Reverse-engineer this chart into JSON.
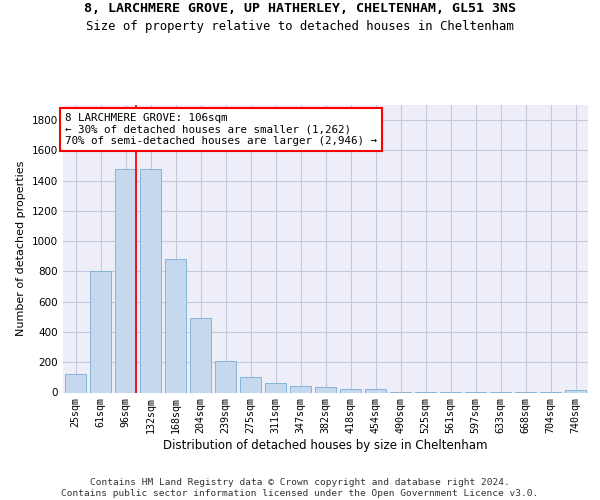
{
  "title_line1": "8, LARCHMERE GROVE, UP HATHERLEY, CHELTENHAM, GL51 3NS",
  "title_line2": "Size of property relative to detached houses in Cheltenham",
  "xlabel": "Distribution of detached houses by size in Cheltenham",
  "ylabel": "Number of detached properties",
  "bar_color": "#c5d8ed",
  "bar_edge_color": "#7aadd4",
  "categories": [
    "25sqm",
    "61sqm",
    "96sqm",
    "132sqm",
    "168sqm",
    "204sqm",
    "239sqm",
    "275sqm",
    "311sqm",
    "347sqm",
    "382sqm",
    "418sqm",
    "454sqm",
    "490sqm",
    "525sqm",
    "561sqm",
    "597sqm",
    "633sqm",
    "668sqm",
    "704sqm",
    "740sqm"
  ],
  "values": [
    125,
    800,
    1480,
    1480,
    880,
    490,
    205,
    105,
    65,
    42,
    35,
    22,
    22,
    5,
    5,
    5,
    5,
    5,
    5,
    5,
    18
  ],
  "ylim": [
    0,
    1900
  ],
  "yticks": [
    0,
    200,
    400,
    600,
    800,
    1000,
    1200,
    1400,
    1600,
    1800
  ],
  "vline_x": 2.42,
  "annotation_text_line1": "8 LARCHMERE GROVE: 106sqm",
  "annotation_text_line2": "← 30% of detached houses are smaller (1,262)",
  "annotation_text_line3": "70% of semi-detached houses are larger (2,946) →",
  "footnote1": "Contains HM Land Registry data © Crown copyright and database right 2024.",
  "footnote2": "Contains public sector information licensed under the Open Government Licence v3.0.",
  "background_color": "#eeeef8",
  "grid_color": "#c8c8dc",
  "bar_linewidth": 0.6
}
